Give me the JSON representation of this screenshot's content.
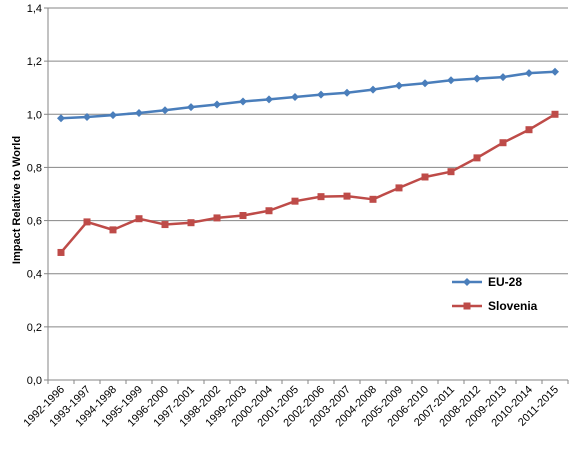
{
  "chart_data": {
    "type": "line",
    "title": "",
    "xlabel": "",
    "ylabel": "Impact Relative to World",
    "ylim": [
      0,
      1.4
    ],
    "yticks": [
      "0,0",
      "0,2",
      "0,4",
      "0,6",
      "0,8",
      "1,0",
      "1,2",
      "1,4"
    ],
    "grid": "horizontal",
    "legend_position": "right",
    "categories": [
      "1992-1996",
      "1993-1997",
      "1994-1998",
      "1995-1999",
      "1996-2000",
      "1997-2001",
      "1998-2002",
      "1999-2003",
      "2000-2004",
      "2001-2005",
      "2002-2006",
      "2003-2007",
      "2004-2008",
      "2005-2009",
      "2006-2010",
      "2007-2011",
      "2008-2012",
      "2009-2013",
      "2010-2014",
      "2011-2015"
    ],
    "series": [
      {
        "name": "EU-28",
        "color": "#4a7ebb",
        "marker": "diamond",
        "values": [
          0.985,
          0.99,
          0.997,
          1.005,
          1.015,
          1.027,
          1.037,
          1.048,
          1.056,
          1.065,
          1.074,
          1.081,
          1.093,
          1.108,
          1.117,
          1.128,
          1.134,
          1.14,
          1.155,
          1.16
        ]
      },
      {
        "name": "Slovenia",
        "color": "#be4b48",
        "marker": "square",
        "values": [
          0.48,
          0.595,
          0.565,
          0.607,
          0.585,
          0.592,
          0.61,
          0.619,
          0.637,
          0.673,
          0.69,
          0.692,
          0.68,
          0.723,
          0.764,
          0.784,
          0.836,
          0.893,
          0.942,
          1.0
        ]
      }
    ]
  }
}
